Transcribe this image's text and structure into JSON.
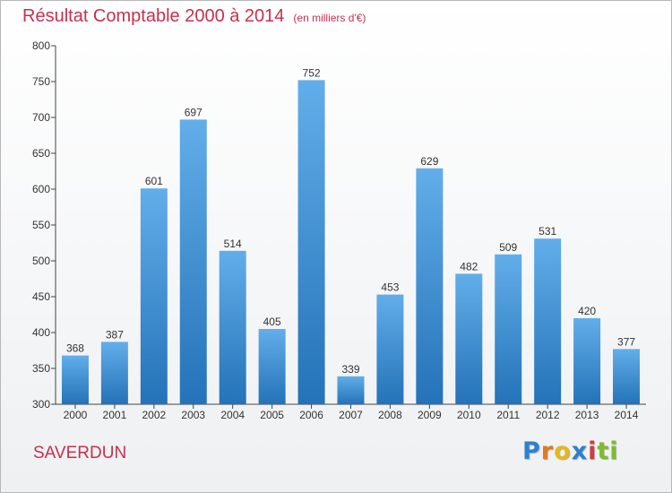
{
  "title": {
    "main": "Résultat Comptable 2000 à 2014",
    "unit": "(en milliers d'€)"
  },
  "place": "SAVERDUN",
  "logo": {
    "letters": [
      "P",
      "r",
      "o",
      "x",
      "i",
      "t",
      "i"
    ],
    "colors": [
      "#2f7fd0",
      "#e07a1c",
      "#e6b81c",
      "#2f7fd0",
      "#d23c3c",
      "#7dbb2d",
      "#7dbb2d"
    ]
  },
  "chart_data": {
    "type": "bar",
    "title": "Résultat Comptable 2000 à 2014",
    "subtitle": "(en milliers d'€)",
    "categories": [
      "2000",
      "2001",
      "2002",
      "2003",
      "2004",
      "2005",
      "2006",
      "2007",
      "2008",
      "2009",
      "2010",
      "2011",
      "2012",
      "2013",
      "2014"
    ],
    "values": [
      368,
      387,
      601,
      697,
      514,
      405,
      752,
      339,
      453,
      629,
      482,
      509,
      531,
      420,
      377
    ],
    "ylim": [
      300,
      800
    ],
    "yticks": [
      300,
      350,
      400,
      450,
      500,
      550,
      600,
      650,
      700,
      750,
      800
    ],
    "grid": false,
    "bar_color_top": "#62aeea",
    "bar_color_bottom": "#2472b8"
  }
}
